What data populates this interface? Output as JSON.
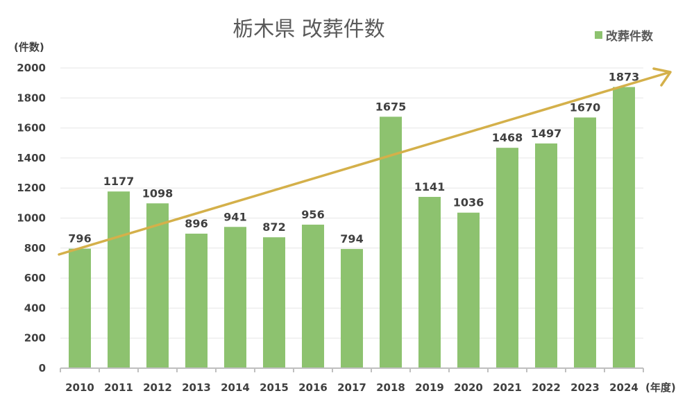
{
  "chart_data": {
    "type": "bar",
    "title": "栃木県 改葬件数",
    "ylabel": "(件数)",
    "xlabel": "(年度)",
    "categories": [
      "2010",
      "2011",
      "2012",
      "2013",
      "2014",
      "2015",
      "2016",
      "2017",
      "2018",
      "2019",
      "2020",
      "2021",
      "2022",
      "2023",
      "2024"
    ],
    "series": [
      {
        "name": "改葬件数",
        "values": [
          796,
          1177,
          1098,
          896,
          941,
          872,
          956,
          794,
          1675,
          1141,
          1036,
          1468,
          1497,
          1670,
          1873
        ]
      }
    ],
    "ylim": [
      0,
      2000
    ],
    "yticks": [
      0,
      200,
      400,
      600,
      800,
      1000,
      1200,
      1400,
      1600,
      1800,
      2000
    ],
    "grid": true,
    "legend": "top-right",
    "data_labels": true,
    "trend_arrow": true,
    "colors": {
      "bar": "#8DC26F",
      "arrow": "#D4B04A",
      "grid": "#E6E6E6",
      "axis": "#BFBFBF"
    }
  }
}
